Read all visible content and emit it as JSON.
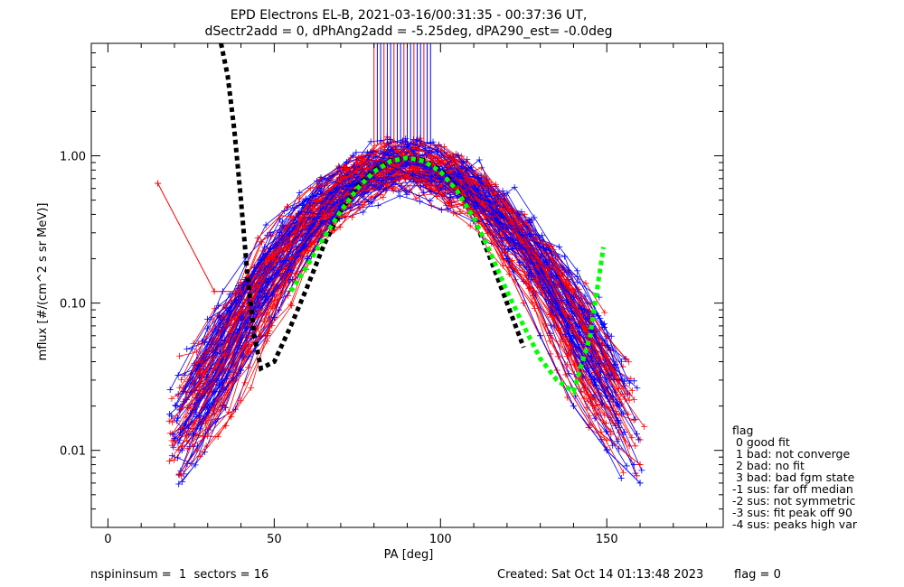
{
  "title_line1": "EPD Electrons EL-B, 2021-03-16/00:31:35 - 00:37:36 UT,",
  "title_line2": "dSectr2add = 0, dPhAng2add = -5.25deg, dPA290_est=  -0.0deg",
  "footer": {
    "left": "nspininsum =  1  sectors = 16",
    "created": "Created: Sat Oct 14 01:13:48 2023",
    "flag": "flag = 0"
  },
  "legend": {
    "title": "flag",
    "items": [
      " 0 good fit",
      " 1 bad: not converge",
      " 2 bad: no fit",
      " 3 bad: bad fgm state",
      "-1 sus: far off median",
      "-2 sus: not symmetric",
      "-3 sus: fit peak off 90",
      "-4 sus: peaks high var"
    ]
  },
  "colors": {
    "series_a": "#ff0000",
    "series_b": "#0000ff",
    "fit_black": "#000000",
    "fit_green": "#00ff00"
  },
  "chart_data": {
    "type": "line",
    "xlabel": "PA [deg]",
    "ylabel": "mflux [#/(cm^2 s sr MeV)]",
    "xlim": [
      -5,
      185
    ],
    "ylim": [
      0.003,
      5.8
    ],
    "yscale": "log",
    "xticks": [
      0,
      50,
      100,
      150
    ],
    "yticks": [
      0.01,
      0.1,
      1.0
    ],
    "ytick_labels": [
      "0.01",
      "0.10",
      "1.00"
    ],
    "series": [
      {
        "color": "red",
        "x": [
          15,
          32,
          40,
          46,
          55,
          65,
          75,
          85,
          90,
          95,
          105,
          115,
          125,
          135,
          145,
          160
        ],
        "y": [
          0.65,
          0.12,
          0.12,
          0.06,
          0.2,
          0.4,
          0.9,
          0.95,
          0.97,
          0.95,
          0.6,
          0.3,
          0.1,
          0.035,
          0.015,
          0.008
        ]
      },
      {
        "color": "blue",
        "x": [
          20,
          30,
          40,
          50,
          60,
          70,
          80,
          85,
          90,
          95,
          100,
          110,
          120,
          130,
          140,
          150,
          160
        ],
        "y": [
          0.012,
          0.02,
          0.035,
          0.08,
          0.2,
          0.45,
          0.8,
          1.1,
          0.9,
          0.85,
          0.7,
          0.45,
          0.2,
          0.06,
          0.02,
          0.01,
          0.006
        ]
      },
      {
        "color": "black",
        "style": "dotted",
        "x": [
          34,
          36,
          38,
          40,
          42,
          44,
          46,
          50,
          55,
          60,
          65,
          70,
          75,
          80,
          85,
          90,
          95,
          100,
          105,
          110,
          115,
          120,
          125
        ],
        "y": [
          5.8,
          3.5,
          1.5,
          0.5,
          0.15,
          0.06,
          0.036,
          0.04,
          0.07,
          0.13,
          0.25,
          0.42,
          0.62,
          0.8,
          0.93,
          0.97,
          0.93,
          0.8,
          0.6,
          0.38,
          0.2,
          0.1,
          0.05
        ]
      },
      {
        "color": "green",
        "style": "dotted",
        "x": [
          55,
          60,
          65,
          70,
          75,
          80,
          85,
          90,
          95,
          100,
          105,
          110,
          115,
          120,
          125,
          130,
          135,
          140,
          145,
          149
        ],
        "y": [
          0.12,
          0.18,
          0.28,
          0.42,
          0.6,
          0.78,
          0.92,
          0.97,
          0.92,
          0.78,
          0.58,
          0.38,
          0.22,
          0.12,
          0.07,
          0.042,
          0.03,
          0.025,
          0.06,
          0.24
        ]
      }
    ],
    "clipped_spikes_pa": [
      80,
      81,
      82,
      83,
      84,
      85,
      86,
      87,
      88,
      89,
      90,
      91,
      92,
      93,
      94,
      95,
      96,
      97
    ]
  }
}
